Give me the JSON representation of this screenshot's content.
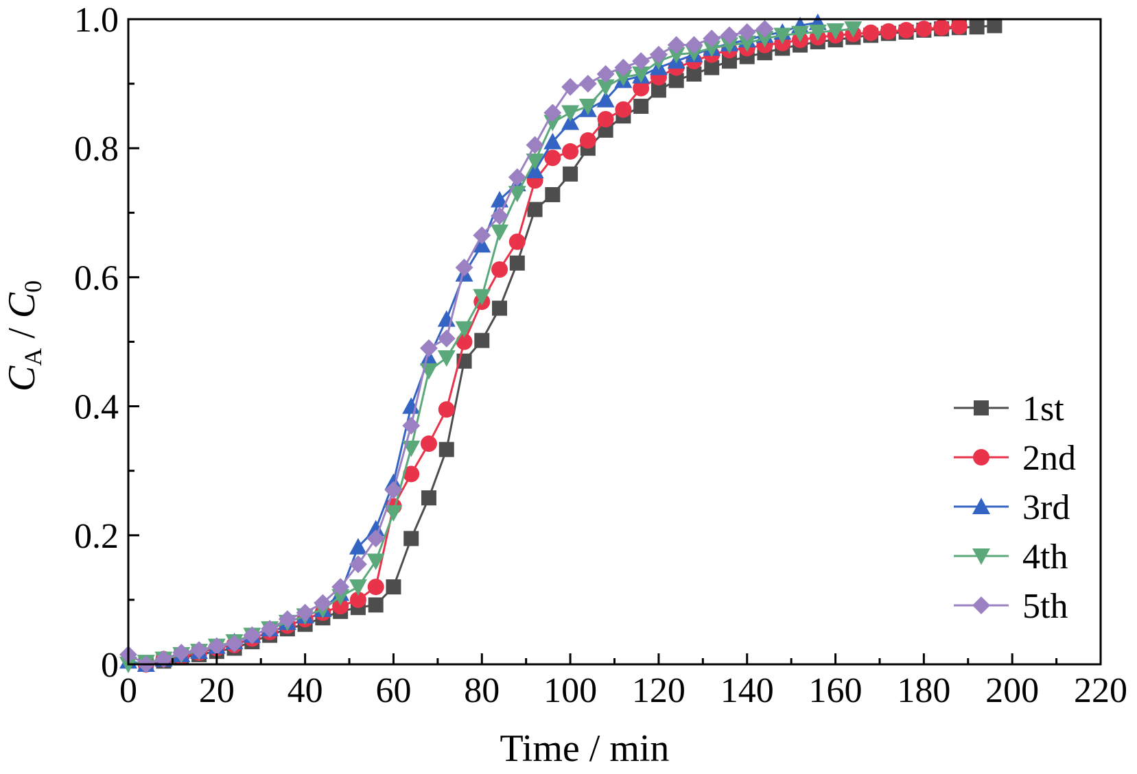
{
  "chart_data": {
    "type": "line",
    "title": "",
    "xlabel": "Time / min",
    "ylabel": {
      "main": "C",
      "sub1": "A",
      "sep": " / ",
      "main2": "C",
      "sub2": "0"
    },
    "xlim": [
      0,
      220
    ],
    "ylim": [
      0,
      1.0
    ],
    "x_ticks": [
      0,
      20,
      40,
      60,
      80,
      100,
      120,
      140,
      160,
      180,
      200,
      220
    ],
    "x_tick_labels": [
      "0",
      "20",
      "40",
      "60",
      "80",
      "100",
      "120",
      "140",
      "160",
      "180",
      "200",
      "220"
    ],
    "y_ticks": [
      0,
      0.2,
      0.4,
      0.6,
      0.8,
      1.0
    ],
    "y_tick_labels": [
      "0",
      "0.2",
      "0.4",
      "0.6",
      "0.8",
      "1.0"
    ],
    "grid": false,
    "legend_position": "bottom-right",
    "series": [
      {
        "name": "1st",
        "color": "#4d4d4d",
        "marker": "square",
        "x": [
          4,
          8,
          12,
          16,
          20,
          24,
          28,
          32,
          36,
          40,
          44,
          48,
          52,
          56,
          60,
          64,
          68,
          72,
          76,
          80,
          84,
          88,
          92,
          96,
          100,
          104,
          108,
          112,
          116,
          120,
          124,
          128,
          132,
          136,
          140,
          144,
          148,
          152,
          156,
          160,
          164,
          168,
          172,
          176,
          180,
          184,
          188,
          192,
          196
        ],
        "y": [
          0.0,
          0.005,
          0.01,
          0.015,
          0.02,
          0.025,
          0.035,
          0.045,
          0.055,
          0.062,
          0.072,
          0.082,
          0.088,
          0.092,
          0.12,
          0.195,
          0.258,
          0.333,
          0.47,
          0.502,
          0.552,
          0.622,
          0.705,
          0.728,
          0.76,
          0.8,
          0.828,
          0.85,
          0.865,
          0.89,
          0.905,
          0.915,
          0.925,
          0.935,
          0.942,
          0.948,
          0.955,
          0.96,
          0.965,
          0.968,
          0.972,
          0.975,
          0.978,
          0.98,
          0.983,
          0.985,
          0.987,
          0.988,
          0.99
        ]
      },
      {
        "name": "2nd",
        "color": "#e8334a",
        "marker": "circle",
        "x": [
          4,
          8,
          12,
          16,
          20,
          24,
          28,
          32,
          36,
          40,
          44,
          48,
          52,
          56,
          60,
          64,
          68,
          72,
          76,
          80,
          84,
          88,
          92,
          96,
          100,
          104,
          108,
          112,
          116,
          120,
          124,
          128,
          132,
          136,
          140,
          144,
          148,
          152,
          156,
          160,
          164,
          168,
          172,
          176,
          180,
          184,
          188
        ],
        "y": [
          0.0,
          0.008,
          0.012,
          0.018,
          0.025,
          0.03,
          0.04,
          0.05,
          0.06,
          0.07,
          0.08,
          0.09,
          0.1,
          0.12,
          0.245,
          0.295,
          0.342,
          0.395,
          0.5,
          0.562,
          0.612,
          0.655,
          0.75,
          0.785,
          0.795,
          0.812,
          0.845,
          0.86,
          0.893,
          0.91,
          0.925,
          0.935,
          0.945,
          0.952,
          0.955,
          0.96,
          0.963,
          0.968,
          0.972,
          0.975,
          0.977,
          0.979,
          0.981,
          0.983,
          0.985,
          0.987,
          0.989
        ]
      },
      {
        "name": "3rd",
        "color": "#3364c4",
        "marker": "triangle-up",
        "x": [
          0,
          4,
          8,
          12,
          16,
          20,
          24,
          28,
          32,
          36,
          40,
          44,
          48,
          52,
          56,
          60,
          64,
          68,
          72,
          76,
          80,
          84,
          88,
          92,
          96,
          100,
          104,
          108,
          112,
          116,
          120,
          124,
          128,
          132,
          136,
          140,
          144,
          148,
          152,
          156
        ],
        "y": [
          0.005,
          0.0,
          0.008,
          0.015,
          0.02,
          0.028,
          0.035,
          0.045,
          0.055,
          0.065,
          0.075,
          0.085,
          0.11,
          0.182,
          0.21,
          0.282,
          0.4,
          0.475,
          0.535,
          0.605,
          0.65,
          0.72,
          0.745,
          0.765,
          0.81,
          0.84,
          0.86,
          0.875,
          0.905,
          0.912,
          0.925,
          0.935,
          0.945,
          0.955,
          0.962,
          0.968,
          0.975,
          0.98,
          0.99,
          0.995
        ]
      },
      {
        "name": "4th",
        "color": "#5ba87a",
        "marker": "triangle-down",
        "x": [
          0,
          4,
          8,
          12,
          16,
          20,
          24,
          28,
          32,
          36,
          40,
          44,
          48,
          52,
          56,
          60,
          64,
          68,
          72,
          76,
          80,
          84,
          88,
          92,
          96,
          100,
          104,
          108,
          112,
          116,
          120,
          124,
          128,
          132,
          136,
          140,
          144,
          148,
          152,
          156,
          160,
          164
        ],
        "y": [
          0.0,
          0.003,
          0.008,
          0.015,
          0.02,
          0.028,
          0.035,
          0.045,
          0.055,
          0.065,
          0.075,
          0.085,
          0.105,
          0.12,
          0.16,
          0.235,
          0.335,
          0.455,
          0.475,
          0.52,
          0.57,
          0.67,
          0.73,
          0.78,
          0.84,
          0.855,
          0.865,
          0.895,
          0.91,
          0.915,
          0.935,
          0.945,
          0.948,
          0.955,
          0.96,
          0.963,
          0.97,
          0.975,
          0.978,
          0.98,
          0.982,
          0.985
        ]
      },
      {
        "name": "5th",
        "color": "#9b80c2",
        "marker": "diamond",
        "x": [
          0,
          4,
          8,
          12,
          16,
          20,
          24,
          28,
          32,
          36,
          40,
          44,
          48,
          52,
          56,
          60,
          64,
          68,
          72,
          76,
          80,
          84,
          88,
          92,
          96,
          100,
          104,
          108,
          112,
          116,
          120,
          124,
          128,
          132,
          136,
          140,
          144
        ],
        "y": [
          0.015,
          0.0,
          0.008,
          0.018,
          0.022,
          0.028,
          0.032,
          0.045,
          0.055,
          0.07,
          0.08,
          0.095,
          0.12,
          0.155,
          0.195,
          0.27,
          0.37,
          0.49,
          0.505,
          0.615,
          0.665,
          0.695,
          0.755,
          0.805,
          0.855,
          0.895,
          0.9,
          0.915,
          0.925,
          0.935,
          0.945,
          0.96,
          0.96,
          0.97,
          0.975,
          0.98,
          0.985
        ]
      }
    ]
  }
}
